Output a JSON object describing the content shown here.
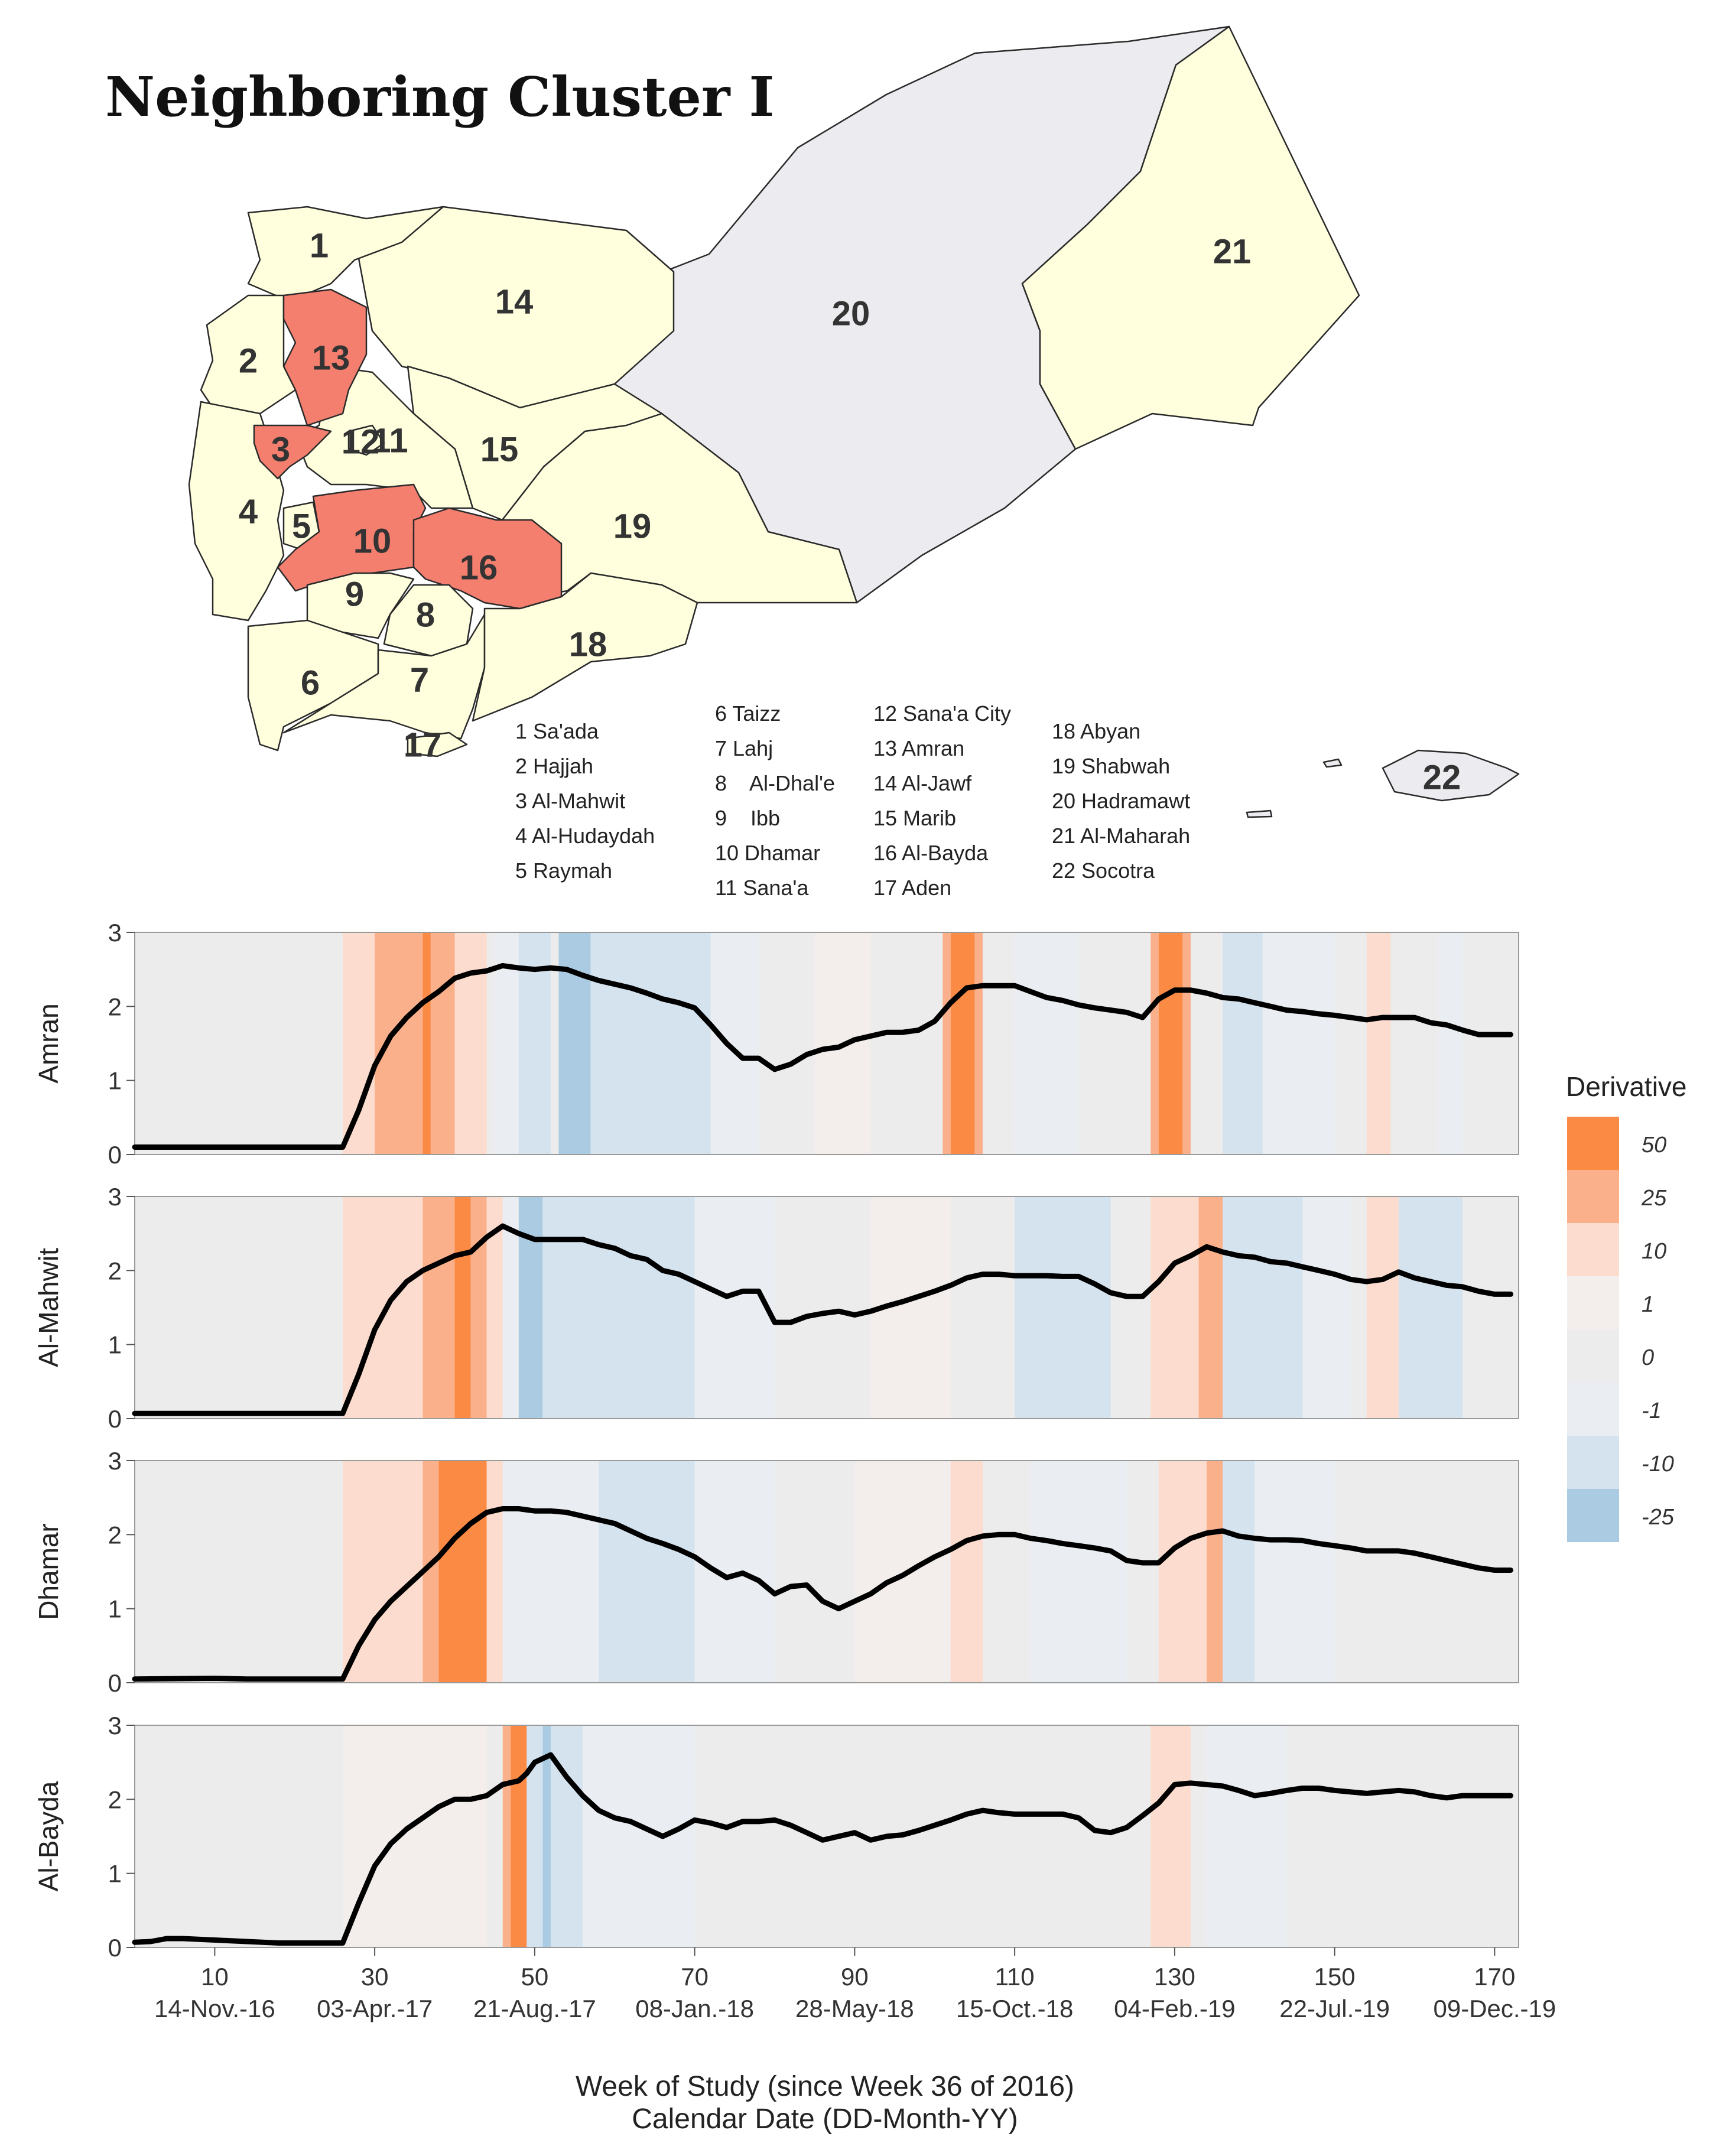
{
  "figure": {
    "title": "Neighboring Cluster I",
    "map": {
      "highlight_color": "#f47f6f",
      "cluster_fill": "#ffffde",
      "other_fill": "#ececf0",
      "regions": [
        {
          "num": "1",
          "name": "Sa'ada"
        },
        {
          "num": "2",
          "name": "Hajjah"
        },
        {
          "num": "3",
          "name": "Al-Mahwit",
          "highlighted": true
        },
        {
          "num": "4",
          "name": "Al-Hudaydah"
        },
        {
          "num": "5",
          "name": "Raymah"
        },
        {
          "num": "6",
          "name": "Taizz"
        },
        {
          "num": "7",
          "name": "Lahj"
        },
        {
          "num": "8",
          "name": "Al-Dhal'e"
        },
        {
          "num": "9",
          "name": "Ibb"
        },
        {
          "num": "10",
          "name": "Dhamar",
          "highlighted": true
        },
        {
          "num": "11",
          "name": "Sana'a"
        },
        {
          "num": "12",
          "name": "Sana'a City"
        },
        {
          "num": "13",
          "name": "Amran",
          "highlighted": true
        },
        {
          "num": "14",
          "name": "Al-Jawf"
        },
        {
          "num": "15",
          "name": "Marib"
        },
        {
          "num": "16",
          "name": "Al-Bayda",
          "highlighted": true
        },
        {
          "num": "17",
          "name": "Aden"
        },
        {
          "num": "18",
          "name": "Abyan"
        },
        {
          "num": "19",
          "name": "Shabwah"
        },
        {
          "num": "20",
          "name": "Hadramawt"
        },
        {
          "num": "21",
          "name": "Al-Maharah"
        },
        {
          "num": "22",
          "name": "Socotra"
        }
      ],
      "legend_columns": [
        [
          "1 Sa'ada",
          "2 Hajjah",
          "3 Al-Mahwit",
          "4 Al-Hudaydah",
          "5 Raymah"
        ],
        [
          "6 Taizz",
          "7 Lahj",
          "8    Al-Dhal'e",
          "9    Ibb",
          "10 Dhamar",
          "11 Sana'a"
        ],
        [
          "12 Sana'a City",
          "13 Amran",
          "14 Al-Jawf",
          "15 Marib",
          "16 Al-Bayda",
          "17 Aden"
        ],
        [
          "18 Abyan",
          "19 Shabwah",
          "20 Hadramawt",
          "21 Al-Maharah",
          "22 Socotra"
        ]
      ]
    }
  },
  "chart_data": {
    "type": "line",
    "description": "Weekly values per governorate with derivative heat-strip background",
    "x_label_1": "Week of Study (since Week 36 of 2016)",
    "x_label_2": "Calendar Date (DD-Month-YY)",
    "xlim": [
      0,
      173
    ],
    "ylim": [
      0,
      3
    ],
    "y_ticks": [
      "0",
      "1",
      "2",
      "3"
    ],
    "x_ticks": [
      10,
      30,
      50,
      70,
      90,
      110,
      130,
      150,
      170
    ],
    "x_tick_labels": [
      "10",
      "30",
      "50",
      "70",
      "90",
      "110",
      "130",
      "150",
      "170"
    ],
    "x_date_labels": [
      "14-Nov.-16",
      "03-Apr.-17",
      "21-Aug.-17",
      "08-Jan.-18",
      "28-May-18",
      "15-Oct.-18",
      "04-Feb.-19",
      "22-Jul.-19",
      "09-Dec.-19"
    ],
    "derivative_legend": {
      "title": "Derivative",
      "labels": [
        "50",
        "25",
        "10",
        "1",
        "0",
        "-1",
        "-10",
        "-25"
      ],
      "colors": [
        "#fb8a44",
        "#fbb08c",
        "#fcdcce",
        "#f3eeec",
        "#ececec",
        "#eaeef2",
        "#d5e3ef",
        "#abcbe2"
      ]
    },
    "series": [
      {
        "name": "Amran",
        "x": [
          0,
          26,
          28,
          30,
          32,
          34,
          36,
          38,
          40,
          42,
          44,
          46,
          48,
          50,
          52,
          54,
          56,
          58,
          60,
          62,
          64,
          66,
          68,
          70,
          72,
          74,
          76,
          78,
          80,
          82,
          84,
          86,
          88,
          90,
          92,
          94,
          96,
          98,
          100,
          102,
          104,
          106,
          108,
          110,
          112,
          114,
          116,
          118,
          120,
          122,
          124,
          126,
          128,
          130,
          132,
          134,
          136,
          138,
          140,
          142,
          144,
          146,
          148,
          150,
          152,
          154,
          156,
          158,
          160,
          162,
          164,
          166,
          168,
          170,
          172
        ],
        "values": [
          0.1,
          0.1,
          0.6,
          1.2,
          1.6,
          1.85,
          2.05,
          2.2,
          2.38,
          2.45,
          2.48,
          2.55,
          2.52,
          2.5,
          2.52,
          2.5,
          2.42,
          2.35,
          2.3,
          2.25,
          2.18,
          2.1,
          2.05,
          1.98,
          1.75,
          1.5,
          1.3,
          1.3,
          1.15,
          1.22,
          1.35,
          1.42,
          1.45,
          1.55,
          1.6,
          1.65,
          1.65,
          1.68,
          1.8,
          2.05,
          2.25,
          2.28,
          2.28,
          2.28,
          2.2,
          2.12,
          2.08,
          2.02,
          1.98,
          1.95,
          1.92,
          1.85,
          2.1,
          2.22,
          2.22,
          2.18,
          2.12,
          2.1,
          2.05,
          2.0,
          1.95,
          1.93,
          1.9,
          1.88,
          1.85,
          1.82,
          1.85,
          1.85,
          1.85,
          1.78,
          1.75,
          1.68,
          1.62,
          1.62,
          1.62
        ],
        "derivative_bands": [
          {
            "from": 26,
            "to": 30,
            "level": "10"
          },
          {
            "from": 30,
            "to": 36,
            "level": "25"
          },
          {
            "from": 36,
            "to": 37,
            "level": "50"
          },
          {
            "from": 37,
            "to": 40,
            "level": "25"
          },
          {
            "from": 40,
            "to": 44,
            "level": "10"
          },
          {
            "from": 45,
            "to": 48,
            "level": "-1"
          },
          {
            "from": 48,
            "to": 52,
            "level": "-10"
          },
          {
            "from": 53,
            "to": 57,
            "level": "-25"
          },
          {
            "from": 57,
            "to": 66,
            "level": "-10"
          },
          {
            "from": 66,
            "to": 72,
            "level": "-10"
          },
          {
            "from": 72,
            "to": 78,
            "level": "-1"
          },
          {
            "from": 85,
            "to": 92,
            "level": "1"
          },
          {
            "from": 101,
            "to": 102,
            "level": "25"
          },
          {
            "from": 102,
            "to": 105,
            "level": "50"
          },
          {
            "from": 105,
            "to": 106,
            "level": "25"
          },
          {
            "from": 110,
            "to": 118,
            "level": "-1"
          },
          {
            "from": 127,
            "to": 128,
            "level": "25"
          },
          {
            "from": 128,
            "to": 131,
            "level": "50"
          },
          {
            "from": 131,
            "to": 132,
            "level": "25"
          },
          {
            "from": 136,
            "to": 141,
            "level": "-10"
          },
          {
            "from": 141,
            "to": 150,
            "level": "-1"
          },
          {
            "from": 154,
            "to": 157,
            "level": "10"
          },
          {
            "from": 163,
            "to": 166,
            "level": "-1"
          }
        ]
      },
      {
        "name": "Al-Mahwit",
        "x": [
          0,
          26,
          28,
          30,
          32,
          34,
          36,
          38,
          40,
          42,
          44,
          46,
          48,
          50,
          52,
          54,
          56,
          58,
          60,
          62,
          64,
          66,
          68,
          70,
          72,
          74,
          76,
          78,
          80,
          82,
          84,
          86,
          88,
          90,
          92,
          94,
          96,
          98,
          100,
          102,
          104,
          106,
          108,
          110,
          112,
          114,
          116,
          118,
          120,
          122,
          124,
          126,
          128,
          130,
          132,
          134,
          136,
          138,
          140,
          142,
          144,
          146,
          148,
          150,
          152,
          154,
          156,
          158,
          160,
          162,
          164,
          166,
          168,
          170,
          172
        ],
        "values": [
          0.07,
          0.07,
          0.6,
          1.2,
          1.6,
          1.85,
          2.0,
          2.1,
          2.2,
          2.25,
          2.45,
          2.6,
          2.5,
          2.42,
          2.42,
          2.42,
          2.42,
          2.35,
          2.3,
          2.2,
          2.15,
          2.0,
          1.95,
          1.85,
          1.75,
          1.65,
          1.72,
          1.72,
          1.3,
          1.3,
          1.38,
          1.42,
          1.45,
          1.4,
          1.45,
          1.52,
          1.58,
          1.65,
          1.72,
          1.8,
          1.9,
          1.95,
          1.95,
          1.93,
          1.93,
          1.93,
          1.92,
          1.92,
          1.82,
          1.7,
          1.65,
          1.65,
          1.85,
          2.1,
          2.2,
          2.32,
          2.25,
          2.2,
          2.18,
          2.12,
          2.1,
          2.05,
          2.0,
          1.95,
          1.88,
          1.85,
          1.88,
          1.98,
          1.9,
          1.85,
          1.8,
          1.78,
          1.72,
          1.68,
          1.68
        ],
        "derivative_bands": [
          {
            "from": 26,
            "to": 36,
            "level": "10"
          },
          {
            "from": 36,
            "to": 40,
            "level": "25"
          },
          {
            "from": 40,
            "to": 42,
            "level": "50"
          },
          {
            "from": 42,
            "to": 44,
            "level": "25"
          },
          {
            "from": 44,
            "to": 46,
            "level": "10"
          },
          {
            "from": 46,
            "to": 48,
            "level": "-1"
          },
          {
            "from": 48,
            "to": 51,
            "level": "-25"
          },
          {
            "from": 51,
            "to": 55,
            "level": "-10"
          },
          {
            "from": 55,
            "to": 70,
            "level": "-10"
          },
          {
            "from": 70,
            "to": 80,
            "level": "-1"
          },
          {
            "from": 92,
            "to": 102,
            "level": "1"
          },
          {
            "from": 110,
            "to": 122,
            "level": "-10"
          },
          {
            "from": 127,
            "to": 133,
            "level": "10"
          },
          {
            "from": 133,
            "to": 136,
            "level": "25"
          },
          {
            "from": 136,
            "to": 146,
            "level": "-10"
          },
          {
            "from": 146,
            "to": 152,
            "level": "-1"
          },
          {
            "from": 154,
            "to": 158,
            "level": "10"
          },
          {
            "from": 158,
            "to": 166,
            "level": "-10"
          }
        ]
      },
      {
        "name": "Dhamar",
        "x": [
          0,
          10,
          14,
          26,
          28,
          30,
          32,
          34,
          36,
          38,
          40,
          42,
          44,
          46,
          48,
          50,
          52,
          54,
          56,
          58,
          60,
          62,
          64,
          66,
          68,
          70,
          72,
          74,
          76,
          78,
          80,
          82,
          84,
          86,
          88,
          90,
          92,
          94,
          96,
          98,
          100,
          102,
          104,
          106,
          108,
          110,
          112,
          114,
          116,
          118,
          120,
          122,
          124,
          126,
          128,
          130,
          132,
          134,
          136,
          138,
          140,
          142,
          144,
          146,
          148,
          150,
          152,
          154,
          156,
          158,
          160,
          162,
          164,
          166,
          168,
          170,
          172
        ],
        "values": [
          0.05,
          0.06,
          0.05,
          0.05,
          0.5,
          0.85,
          1.1,
          1.3,
          1.5,
          1.7,
          1.95,
          2.15,
          2.3,
          2.35,
          2.35,
          2.32,
          2.32,
          2.3,
          2.25,
          2.2,
          2.15,
          2.05,
          1.95,
          1.88,
          1.8,
          1.7,
          1.55,
          1.42,
          1.48,
          1.38,
          1.2,
          1.3,
          1.32,
          1.1,
          1.0,
          1.1,
          1.2,
          1.35,
          1.45,
          1.58,
          1.7,
          1.8,
          1.92,
          1.98,
          2.0,
          2.0,
          1.95,
          1.92,
          1.88,
          1.85,
          1.82,
          1.78,
          1.65,
          1.62,
          1.62,
          1.82,
          1.95,
          2.02,
          2.05,
          1.98,
          1.95,
          1.93,
          1.93,
          1.92,
          1.88,
          1.85,
          1.82,
          1.78,
          1.78,
          1.78,
          1.75,
          1.7,
          1.65,
          1.6,
          1.55,
          1.52,
          1.52
        ],
        "derivative_bands": [
          {
            "from": 26,
            "to": 36,
            "level": "10"
          },
          {
            "from": 36,
            "to": 38,
            "level": "25"
          },
          {
            "from": 38,
            "to": 44,
            "level": "50"
          },
          {
            "from": 44,
            "to": 46,
            "level": "10"
          },
          {
            "from": 46,
            "to": 58,
            "level": "-1"
          },
          {
            "from": 58,
            "to": 70,
            "level": "-10"
          },
          {
            "from": 70,
            "to": 80,
            "level": "-1"
          },
          {
            "from": 90,
            "to": 102,
            "level": "1"
          },
          {
            "from": 102,
            "to": 106,
            "level": "10"
          },
          {
            "from": 112,
            "to": 124,
            "level": "-1"
          },
          {
            "from": 128,
            "to": 134,
            "level": "10"
          },
          {
            "from": 134,
            "to": 136,
            "level": "25"
          },
          {
            "from": 136,
            "to": 140,
            "level": "-10"
          },
          {
            "from": 140,
            "to": 150,
            "level": "-1"
          }
        ]
      },
      {
        "name": "Al-Bayda",
        "x": [
          0,
          2,
          4,
          6,
          10,
          14,
          18,
          22,
          26,
          28,
          30,
          32,
          34,
          36,
          38,
          40,
          42,
          44,
          46,
          48,
          49,
          50,
          52,
          54,
          56,
          58,
          60,
          62,
          64,
          66,
          68,
          70,
          72,
          74,
          76,
          78,
          80,
          82,
          84,
          86,
          88,
          90,
          92,
          94,
          96,
          98,
          100,
          102,
          104,
          106,
          108,
          110,
          112,
          114,
          116,
          118,
          120,
          122,
          124,
          126,
          128,
          130,
          132,
          134,
          136,
          138,
          140,
          142,
          144,
          146,
          148,
          150,
          152,
          154,
          156,
          158,
          160,
          162,
          164,
          166,
          168,
          170,
          172
        ],
        "values": [
          0.07,
          0.08,
          0.12,
          0.12,
          0.1,
          0.08,
          0.06,
          0.06,
          0.06,
          0.6,
          1.1,
          1.4,
          1.6,
          1.75,
          1.9,
          2.0,
          2.0,
          2.05,
          2.2,
          2.25,
          2.35,
          2.5,
          2.6,
          2.3,
          2.05,
          1.85,
          1.75,
          1.7,
          1.6,
          1.5,
          1.6,
          1.72,
          1.68,
          1.62,
          1.7,
          1.7,
          1.72,
          1.65,
          1.55,
          1.45,
          1.5,
          1.55,
          1.45,
          1.5,
          1.52,
          1.58,
          1.65,
          1.72,
          1.8,
          1.85,
          1.82,
          1.8,
          1.8,
          1.8,
          1.8,
          1.75,
          1.58,
          1.55,
          1.62,
          1.78,
          1.95,
          2.2,
          2.22,
          2.2,
          2.18,
          2.12,
          2.05,
          2.08,
          2.12,
          2.15,
          2.15,
          2.12,
          2.1,
          2.08,
          2.1,
          2.12,
          2.1,
          2.05,
          2.02,
          2.05,
          2.05,
          2.05,
          2.05
        ],
        "derivative_bands": [
          {
            "from": 26,
            "to": 44,
            "level": "1"
          },
          {
            "from": 46,
            "to": 47,
            "level": "25"
          },
          {
            "from": 47,
            "to": 49,
            "level": "50"
          },
          {
            "from": 49,
            "to": 51,
            "level": "-10"
          },
          {
            "from": 51,
            "to": 52,
            "level": "-25"
          },
          {
            "from": 52,
            "to": 56,
            "level": "-10"
          },
          {
            "from": 56,
            "to": 70,
            "level": "-1"
          },
          {
            "from": 127,
            "to": 132,
            "level": "10"
          },
          {
            "from": 134,
            "to": 144,
            "level": "-1"
          }
        ]
      }
    ]
  }
}
